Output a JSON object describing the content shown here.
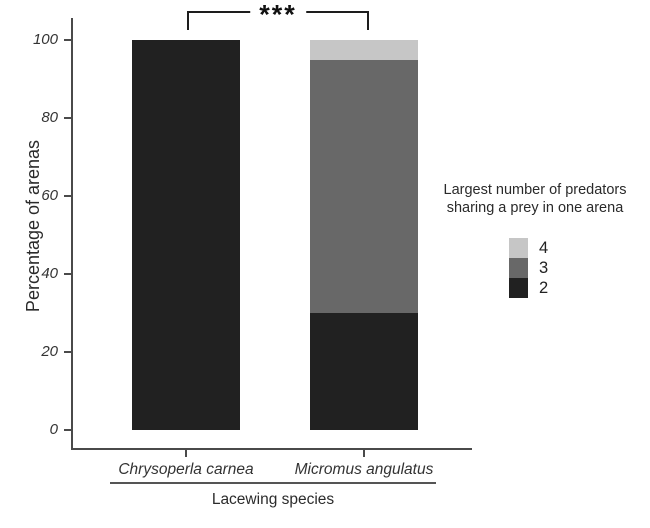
{
  "figure": {
    "background": "#ffffff",
    "axis_color": "#4a4a4a"
  },
  "chart_data": {
    "type": "stacked_bar",
    "categories": [
      "Chrysoperla carnea",
      "Micromus angulatus"
    ],
    "series": [
      {
        "name": "2",
        "color": "#212121",
        "values": [
          100,
          30
        ]
      },
      {
        "name": "3",
        "color": "#686868",
        "values": [
          0,
          65
        ]
      },
      {
        "name": "4",
        "color": "#c6c6c6",
        "values": [
          0,
          5
        ]
      }
    ],
    "title": "",
    "xlabel": "Lacewing species",
    "ylabel": "Percentage of arenas",
    "yticks": [
      0,
      20,
      40,
      60,
      80,
      100
    ],
    "ylim": [
      0,
      100
    ],
    "grid": false,
    "legend_position": "right",
    "significance": {
      "label": "***",
      "from": "Chrysoperla carnea",
      "to": "Micromus angulatus"
    },
    "legend": {
      "title": "Largest number of predators sharing a prey in one arena",
      "entries": [
        {
          "label": "4",
          "color": "#c6c6c6"
        },
        {
          "label": "3",
          "color": "#686868"
        },
        {
          "label": "2",
          "color": "#212121"
        }
      ]
    }
  }
}
